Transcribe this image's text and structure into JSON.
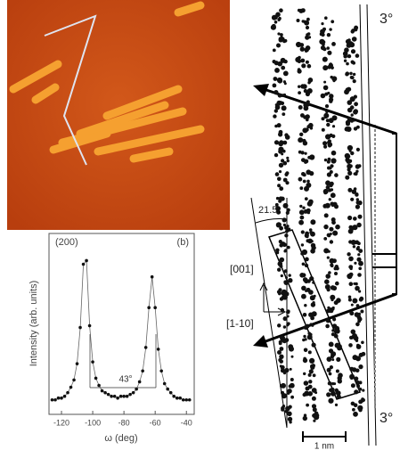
{
  "chart_data": {
    "type": "scatter",
    "title": "(200)",
    "subtitle": "(b)",
    "x_label": "ω (deg)",
    "y_label": "Intensity (arb. units)",
    "annotation": "43°",
    "x": [
      -126,
      -124,
      -122,
      -120,
      -118,
      -116,
      -114,
      -112,
      -110,
      -108,
      -106,
      -104,
      -102,
      -100,
      -98,
      -96,
      -94,
      -92,
      -90,
      -88,
      -86,
      -84,
      -82,
      -80,
      -78,
      -76,
      -74,
      -72,
      -70,
      -68,
      -66,
      -64,
      -62,
      -60,
      -58,
      -56,
      -54,
      -52,
      -50,
      -48,
      -46,
      -44,
      -42,
      -40,
      -38
    ],
    "values": [
      8,
      8,
      9,
      9,
      10,
      12,
      15,
      19,
      28,
      48,
      83,
      85,
      49,
      29,
      20,
      16,
      13,
      12,
      11,
      10,
      10,
      9,
      10,
      10,
      10,
      11,
      12,
      14,
      18,
      24,
      37,
      59,
      76,
      59,
      36,
      24,
      17,
      14,
      12,
      10,
      9,
      9,
      8,
      8,
      8
    ],
    "color": "#111111",
    "xlim": [
      -128,
      -35
    ],
    "ylim": [
      0,
      100
    ],
    "xticks": [
      -120,
      -100,
      -80,
      -60,
      -40
    ]
  },
  "diagram": {
    "angle_top": "3°",
    "angle_bottom": "3°",
    "tilt": "21.5",
    "axis_up": "[001]",
    "axis_side": "[1-10]",
    "scale": "1 nm"
  }
}
